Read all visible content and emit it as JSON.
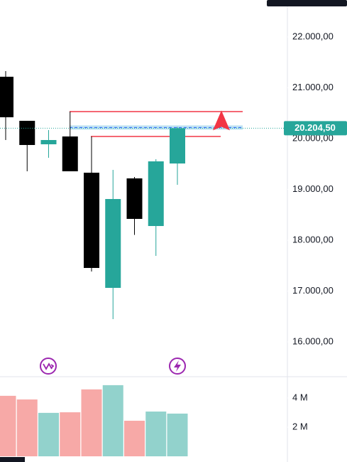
{
  "chart_data": [
    {
      "type": "candlestick",
      "open": [
        21217,
        20350,
        19888,
        20042,
        19329,
        17063,
        19217,
        18280,
        19510
      ],
      "high": [
        21329,
        20350,
        20168,
        20531,
        20042,
        19385,
        19245,
        19594,
        20230
      ],
      "low": [
        19972,
        19357,
        19622,
        19357,
        17385,
        16448,
        18105,
        17692,
        19091
      ],
      "close": [
        20420,
        19874,
        19972,
        19357,
        17455,
        18811,
        18420,
        19552,
        20204.5
      ],
      "up_color": "#26a69a",
      "down_color": "#000000",
      "ylim": [
        15315,
        22727
      ],
      "yticks": [
        {
          "value": 16000,
          "label": "16.000,00"
        },
        {
          "value": 17000,
          "label": "17.000,00"
        },
        {
          "value": 18000,
          "label": "18.000,00"
        },
        {
          "value": 19000,
          "label": "19.000,00"
        },
        {
          "value": 20000,
          "label": "20.000,00"
        },
        {
          "value": 21000,
          "label": "21.000,00"
        },
        {
          "value": 22000,
          "label": "22.000,00"
        }
      ],
      "current_price": {
        "value": 20204.5,
        "label": "20.204,50"
      },
      "levels": [
        20531,
        20042
      ],
      "band": [
        20260,
        20176
      ]
    },
    {
      "type": "bar",
      "values": [
        4150000,
        3900000,
        2980000,
        3020000,
        4590000,
        4880000,
        2440000,
        3070000,
        2930000
      ],
      "colors": [
        "#f7a9a7",
        "#f7a9a7",
        "#92d2cc",
        "#f7a9a7",
        "#f7a9a7",
        "#92d2cc",
        "#f7a9a7",
        "#92d2cc",
        "#92d2cc"
      ],
      "ylim": [
        0,
        5460000
      ],
      "yticks": [
        {
          "value": 2000000,
          "label": "2 M"
        },
        {
          "value": 4000000,
          "label": "4 M"
        }
      ]
    }
  ]
}
